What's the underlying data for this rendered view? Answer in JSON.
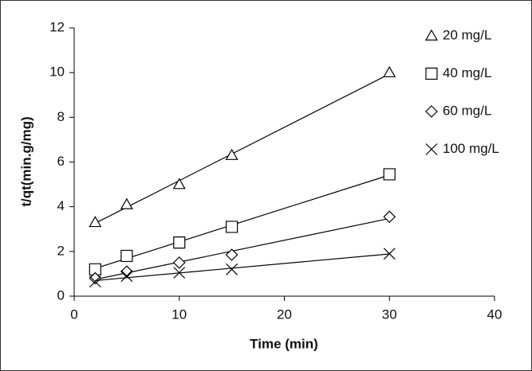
{
  "chart_data": {
    "type": "scatter",
    "trendline": true,
    "xlabel": "Time (min)",
    "ylabel": "t/qt(min.g/mg)",
    "xlim": [
      0,
      40
    ],
    "xticks": [
      0,
      10,
      20,
      30,
      40
    ],
    "ylim": [
      0,
      12
    ],
    "yticks": [
      0,
      2,
      4,
      6,
      8,
      10,
      12
    ],
    "legend": "top-right",
    "series": [
      {
        "name": "20 mg/L",
        "marker": "triangle",
        "color": "#000000",
        "x": [
          2,
          5,
          10,
          15,
          30
        ],
        "values": [
          3.3,
          4.1,
          5.0,
          6.3,
          10.0
        ]
      },
      {
        "name": "40 mg/L",
        "marker": "square",
        "color": "#000000",
        "x": [
          2,
          5,
          10,
          15,
          30
        ],
        "values": [
          1.2,
          1.8,
          2.4,
          3.1,
          5.45
        ]
      },
      {
        "name": "60 mg/L",
        "marker": "diamond",
        "color": "#000000",
        "x": [
          2,
          5,
          10,
          15,
          30
        ],
        "values": [
          0.8,
          1.1,
          1.5,
          1.85,
          3.55
        ]
      },
      {
        "name": "100 mg/L",
        "marker": "cross",
        "color": "#000000",
        "x": [
          2,
          5,
          10,
          15,
          30
        ],
        "values": [
          0.65,
          0.9,
          1.05,
          1.2,
          1.9
        ]
      }
    ]
  }
}
